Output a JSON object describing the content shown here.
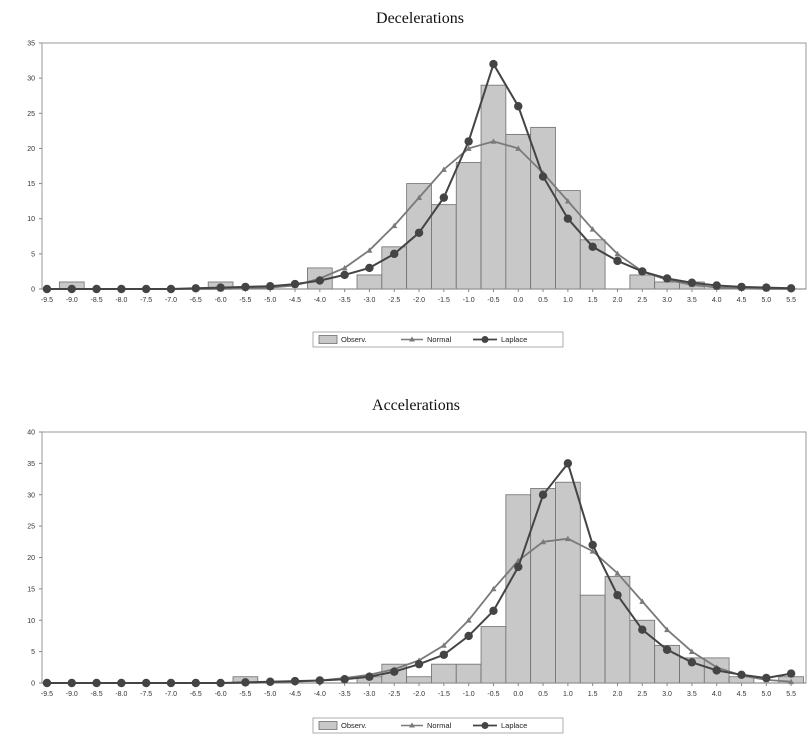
{
  "chart_data": [
    {
      "type": "bar",
      "title": "Decelerations",
      "ylim": [
        0,
        35
      ],
      "yticks": [
        0,
        5,
        10,
        15,
        20,
        25,
        30,
        35
      ],
      "xlim": [
        -9.6,
        5.8
      ],
      "x_tick_labels": [
        "-9.5",
        "-9.0",
        "-8.5",
        "-8.0",
        "-7.5",
        "-7.0",
        "-6.5",
        "-6.0",
        "-5.5",
        "-5.0",
        "-4.5",
        "-4.0",
        "-3.5",
        "-3.0",
        "-2.5",
        "-2.0",
        "-1.5",
        "-1.0",
        "-0.5",
        "0.0",
        "0.5",
        "1.0",
        "1.5",
        "2.0",
        "2.5",
        "3.0",
        "3.5",
        "4.0",
        "4.5",
        "5.0",
        "5.5"
      ],
      "x": [
        -9.5,
        -9.0,
        -8.5,
        -8.0,
        -7.5,
        -7.0,
        -6.5,
        -6.0,
        -5.5,
        -5.0,
        -4.5,
        -4.0,
        -3.5,
        -3.0,
        -2.5,
        -2.0,
        -1.5,
        -1.0,
        -0.5,
        0.0,
        0.5,
        1.0,
        1.5,
        2.0,
        2.5,
        3.0,
        3.5,
        4.0,
        4.5,
        5.0,
        5.5
      ],
      "legend": {
        "position": "bottom-center",
        "entries": [
          "Observ.",
          "Normal",
          "Laplace"
        ]
      },
      "series": [
        {
          "name": "Observ.",
          "kind": "bar",
          "color": "#c8c8c8",
          "values": [
            0,
            1,
            0,
            0,
            0,
            0,
            0,
            1,
            0,
            0,
            0,
            3,
            0,
            2,
            6,
            15,
            12,
            18,
            29,
            22,
            23,
            14,
            7,
            0,
            2,
            1,
            1,
            0,
            0,
            0,
            0
          ]
        },
        {
          "name": "Normal",
          "kind": "line",
          "marker": "triangle",
          "color": "#7a7a7a",
          "values": [
            0,
            0,
            0,
            0,
            0,
            0,
            0,
            0,
            0.1,
            0.2,
            0.5,
            1.5,
            3,
            5.5,
            9,
            13,
            17,
            20,
            21,
            20,
            16.5,
            12.5,
            8.5,
            5,
            2.5,
            1.3,
            0.6,
            0.2,
            0.1,
            0,
            0
          ]
        },
        {
          "name": "Laplace",
          "kind": "line",
          "marker": "circle",
          "color": "#444444",
          "values": [
            0,
            0,
            0,
            0,
            0,
            0,
            0.1,
            0.2,
            0.3,
            0.4,
            0.7,
            1.2,
            2,
            3,
            5,
            8,
            13,
            21,
            32,
            26,
            16,
            10,
            6,
            4,
            2.5,
            1.5,
            0.9,
            0.5,
            0.3,
            0.2,
            0.1
          ]
        }
      ]
    },
    {
      "type": "bar",
      "title": "Accelerations",
      "ylim": [
        0,
        40
      ],
      "yticks": [
        0,
        5,
        10,
        15,
        20,
        25,
        30,
        35,
        40
      ],
      "xlim": [
        -9.6,
        5.8
      ],
      "x_tick_labels": [
        "-9.5",
        "-9.0",
        "-8.5",
        "-8.0",
        "-7.5",
        "-7.0",
        "-6.5",
        "-6.0",
        "-5.5",
        "-5.0",
        "-4.5",
        "-4.0",
        "-3.5",
        "-3.0",
        "-2.5",
        "-2.0",
        "-1.5",
        "-1.0",
        "-0.5",
        "0.0",
        "0.5",
        "1.0",
        "1.5",
        "2.0",
        "2.5",
        "3.0",
        "3.5",
        "4.0",
        "4.5",
        "5.0",
        "5.5"
      ],
      "x": [
        -9.5,
        -9.0,
        -8.5,
        -8.0,
        -7.5,
        -7.0,
        -6.5,
        -6.0,
        -5.5,
        -5.0,
        -4.5,
        -4.0,
        -3.5,
        -3.0,
        -2.5,
        -2.0,
        -1.5,
        -1.0,
        -0.5,
        0.0,
        0.5,
        1.0,
        1.5,
        2.0,
        2.5,
        3.0,
        3.5,
        4.0,
        4.5,
        5.0,
        5.5
      ],
      "legend": {
        "position": "bottom-center",
        "entries": [
          "Observ.",
          "Normal",
          "Laplace"
        ]
      },
      "series": [
        {
          "name": "Observ.",
          "kind": "bar",
          "color": "#c8c8c8",
          "values": [
            0,
            0,
            0,
            0,
            0,
            0,
            0,
            0,
            1,
            0,
            0,
            0,
            0,
            1,
            3,
            1,
            3,
            3,
            9,
            30,
            31,
            32,
            14,
            17,
            10,
            6,
            4,
            4,
            1,
            0,
            1
          ]
        },
        {
          "name": "Normal",
          "kind": "line",
          "marker": "triangle",
          "color": "#7a7a7a",
          "values": [
            0,
            0,
            0,
            0,
            0,
            0,
            0,
            0,
            0,
            0.1,
            0.2,
            0.4,
            0.8,
            1.3,
            2.2,
            3.6,
            6,
            10,
            15,
            19.5,
            22.5,
            23,
            21,
            17.5,
            13,
            8.5,
            5,
            2.5,
            1.2,
            0.5,
            0.2
          ]
        },
        {
          "name": "Laplace",
          "kind": "line",
          "marker": "circle",
          "color": "#444444",
          "values": [
            0,
            0,
            0,
            0,
            0,
            0,
            0,
            0,
            0.1,
            0.2,
            0.3,
            0.4,
            0.6,
            1,
            1.8,
            3,
            4.5,
            7.5,
            11.5,
            18.5,
            30,
            35,
            22,
            14,
            8.5,
            5.3,
            3.3,
            2,
            1.3,
            0.8,
            1.5
          ]
        }
      ]
    }
  ]
}
